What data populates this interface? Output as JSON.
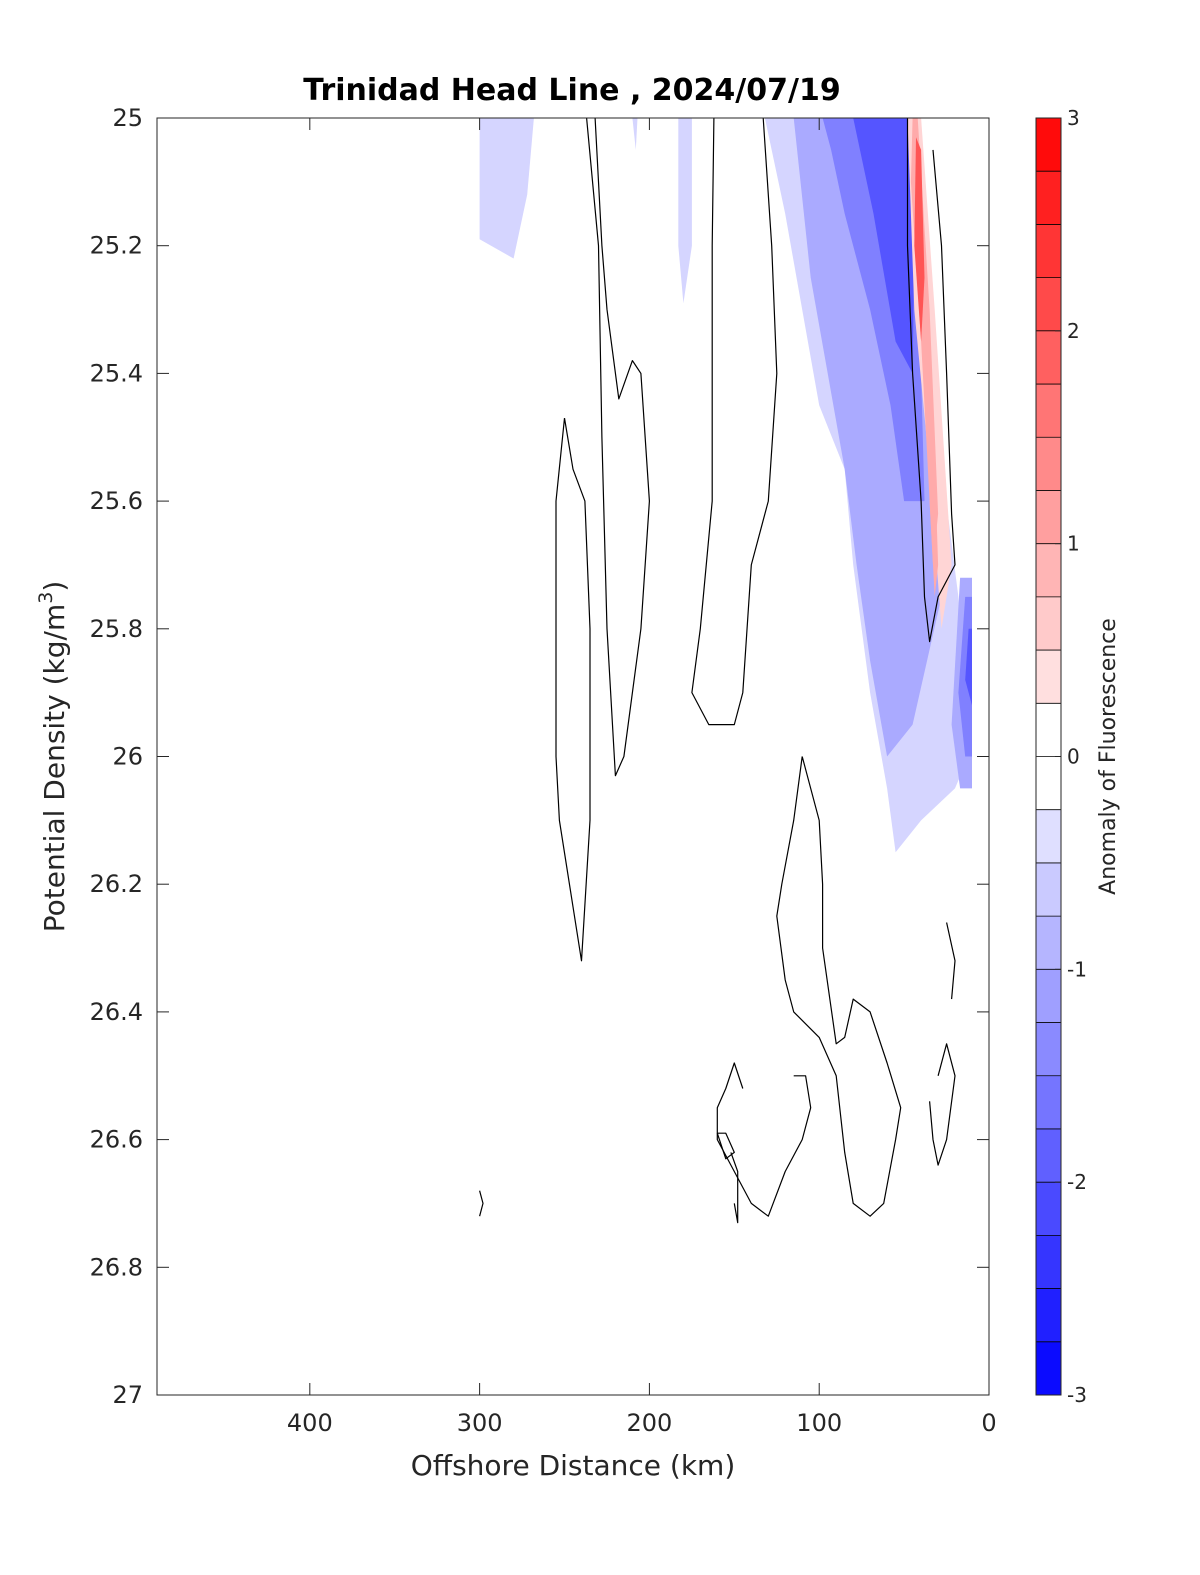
{
  "chart_data": {
    "type": "contour",
    "title": "Trinidad Head Line , 2024/07/19",
    "xlabel": "Offshore Distance (km)",
    "ylabel": "Potential Density (kg/m³)",
    "ylabel_parts": {
      "base": "Potential Density (kg/m",
      "sup": "3",
      "end": ")"
    },
    "colorbar_label": "Anomaly of Fluorescence",
    "x_reversed": true,
    "y_reversed": true,
    "xlim": [
      490,
      0
    ],
    "ylim": [
      25,
      27
    ],
    "x_ticks": [
      400,
      300,
      200,
      100,
      0
    ],
    "x_tick_labels": [
      "400",
      "300",
      "200",
      "100",
      "0"
    ],
    "y_ticks": [
      25,
      25.2,
      25.4,
      25.6,
      25.8,
      26,
      26.2,
      26.4,
      26.6,
      26.8,
      27
    ],
    "y_tick_labels": [
      "25",
      "25.2",
      "25.4",
      "25.6",
      "25.8",
      "26",
      "26.2",
      "26.4",
      "26.6",
      "26.8",
      "27"
    ],
    "colorbar_range": [
      -3,
      3
    ],
    "colorbar_ticks": [
      3,
      2,
      1,
      0,
      -1,
      -2,
      -3
    ],
    "colorbar_tick_labels": [
      "3",
      "2",
      "1",
      "0",
      "-1",
      "-2",
      "-3"
    ],
    "colorbar_step": 0.25,
    "colors": {
      "positive_max": "#ff0000",
      "negative_max": "#0000ff",
      "neutral": "#ffffff",
      "contour_line": "#000000"
    },
    "filled_regions": [
      {
        "value": -0.5,
        "points": [
          [
            300,
            25
          ],
          [
            268,
            25
          ],
          [
            272,
            25.12
          ],
          [
            280,
            25.22
          ],
          [
            300,
            25.19
          ]
        ]
      },
      {
        "value": -0.5,
        "points": [
          [
            210,
            25
          ],
          [
            207,
            25
          ],
          [
            208,
            25.05
          ]
        ]
      },
      {
        "value": -0.5,
        "points": [
          [
            183,
            25
          ],
          [
            175,
            25
          ],
          [
            175,
            25.2
          ],
          [
            180,
            25.29
          ],
          [
            183,
            25.2
          ]
        ]
      },
      {
        "value": -0.5,
        "points": [
          [
            132,
            25
          ],
          [
            45,
            25
          ],
          [
            30,
            25.5
          ],
          [
            18,
            25.75
          ],
          [
            12,
            26.0
          ],
          [
            20,
            26.05
          ],
          [
            40,
            26.1
          ],
          [
            55,
            26.15
          ],
          [
            60,
            26.05
          ],
          [
            70,
            25.9
          ],
          [
            80,
            25.7
          ],
          [
            85,
            25.55
          ],
          [
            100,
            25.45
          ],
          [
            110,
            25.3
          ],
          [
            120,
            25.15
          ]
        ]
      },
      {
        "value": -1.0,
        "points": [
          [
            115,
            25
          ],
          [
            45,
            25
          ],
          [
            32,
            25.5
          ],
          [
            28,
            25.75
          ],
          [
            45,
            25.95
          ],
          [
            60,
            26.0
          ],
          [
            70,
            25.85
          ],
          [
            78,
            25.7
          ],
          [
            85,
            25.55
          ],
          [
            95,
            25.4
          ],
          [
            105,
            25.25
          ]
        ]
      },
      {
        "value": -1.0,
        "points": [
          [
            17,
            25.72
          ],
          [
            10,
            25.72
          ],
          [
            10,
            26.05
          ],
          [
            17,
            26.05
          ],
          [
            22,
            25.95
          ]
        ]
      },
      {
        "value": -1.5,
        "points": [
          [
            98,
            25
          ],
          [
            48,
            25
          ],
          [
            40,
            25.4
          ],
          [
            38,
            25.6
          ],
          [
            50,
            25.6
          ],
          [
            58,
            25.45
          ],
          [
            70,
            25.3
          ],
          [
            85,
            25.15
          ],
          [
            93,
            25.05
          ]
        ]
      },
      {
        "value": -1.5,
        "points": [
          [
            14,
            25.75
          ],
          [
            10,
            25.75
          ],
          [
            10,
            26.0
          ],
          [
            14,
            26.0
          ],
          [
            18,
            25.9
          ]
        ]
      },
      {
        "value": -2.0,
        "points": [
          [
            80,
            25
          ],
          [
            48,
            25
          ],
          [
            44,
            25.2
          ],
          [
            45,
            25.4
          ],
          [
            55,
            25.35
          ],
          [
            68,
            25.15
          ]
        ]
      },
      {
        "value": -2.0,
        "points": [
          [
            12,
            25.8
          ],
          [
            10,
            25.8
          ],
          [
            10,
            25.92
          ],
          [
            14,
            25.88
          ]
        ]
      },
      {
        "value": 0.5,
        "points": [
          [
            48,
            25
          ],
          [
            40,
            25.0
          ],
          [
            32,
            25.3
          ],
          [
            22,
            25.7
          ],
          [
            28,
            25.8
          ],
          [
            35,
            25.55
          ],
          [
            44,
            25.3
          ]
        ]
      },
      {
        "value": 1.0,
        "points": [
          [
            45,
            25
          ],
          [
            42,
            25.0
          ],
          [
            35,
            25.3
          ],
          [
            30,
            25.62
          ],
          [
            33,
            25.7
          ],
          [
            40,
            25.35
          ],
          [
            46,
            25.1
          ]
        ]
      },
      {
        "value": 2.0,
        "points": [
          [
            43,
            25.03
          ],
          [
            40,
            25.05
          ],
          [
            38,
            25.25
          ],
          [
            40,
            25.35
          ],
          [
            44,
            25.2
          ]
        ]
      },
      {
        "value": 1.0,
        "points": [
          [
            36,
            25.4
          ],
          [
            33,
            25.45
          ],
          [
            30,
            25.7
          ],
          [
            32,
            25.75
          ],
          [
            35,
            25.6
          ]
        ]
      }
    ],
    "contour_lines": [
      [
        [
          237,
          25
        ],
        [
          230,
          25.2
        ],
        [
          228,
          25.5
        ],
        [
          225,
          25.8
        ],
        [
          220,
          26.03
        ],
        [
          215,
          26.0
        ],
        [
          205,
          25.8
        ],
        [
          200,
          25.6
        ],
        [
          205,
          25.4
        ],
        [
          210,
          25.38
        ],
        [
          218,
          25.44
        ],
        [
          225,
          25.3
        ],
        [
          228,
          25.2
        ],
        [
          232,
          25
        ]
      ],
      [
        [
          250,
          25.47
        ],
        [
          255,
          25.6
        ],
        [
          255,
          26.0
        ],
        [
          253,
          26.1
        ],
        [
          240,
          26.32
        ],
        [
          235,
          26.1
        ],
        [
          235,
          25.8
        ],
        [
          238,
          25.6
        ],
        [
          245,
          25.55
        ],
        [
          250,
          25.47
        ]
      ],
      [
        [
          162,
          25
        ],
        [
          163,
          25.2
        ],
        [
          163,
          25.6
        ],
        [
          170,
          25.8
        ],
        [
          175,
          25.9
        ],
        [
          165,
          25.95
        ],
        [
          150,
          25.95
        ],
        [
          145,
          25.9
        ],
        [
          140,
          25.7
        ],
        [
          130,
          25.6
        ],
        [
          125,
          25.4
        ],
        [
          128,
          25.2
        ],
        [
          133,
          25
        ]
      ],
      [
        [
          48,
          25
        ],
        [
          48,
          25.2
        ],
        [
          45,
          25.4
        ],
        [
          40,
          25.6
        ],
        [
          38,
          25.75
        ],
        [
          35,
          25.82
        ],
        [
          30,
          25.75
        ],
        [
          20,
          25.7
        ],
        [
          22,
          25.62
        ],
        [
          25,
          25.4
        ],
        [
          28,
          25.2
        ],
        [
          33,
          25.05
        ]
      ],
      [
        [
          110,
          26.0
        ],
        [
          100,
          26.1
        ],
        [
          98,
          26.2
        ],
        [
          98,
          26.3
        ],
        [
          90,
          26.45
        ],
        [
          85,
          26.44
        ],
        [
          80,
          26.38
        ],
        [
          70,
          26.4
        ],
        [
          60,
          26.48
        ],
        [
          52,
          26.55
        ],
        [
          55,
          26.6
        ],
        [
          62,
          26.7
        ],
        [
          70,
          26.72
        ],
        [
          80,
          26.7
        ],
        [
          85,
          26.62
        ],
        [
          90,
          26.5
        ],
        [
          100,
          26.44
        ],
        [
          115,
          26.4
        ],
        [
          120,
          26.35
        ],
        [
          125,
          26.25
        ],
        [
          122,
          26.2
        ],
        [
          115,
          26.1
        ],
        [
          110,
          26.0
        ]
      ],
      [
        [
          145,
          26.52
        ],
        [
          150,
          26.48
        ],
        [
          155,
          26.52
        ],
        [
          160,
          26.55
        ],
        [
          160,
          26.6
        ],
        [
          150,
          26.65
        ],
        [
          140,
          26.7
        ],
        [
          130,
          26.72
        ],
        [
          120,
          26.65
        ],
        [
          110,
          26.6
        ],
        [
          105,
          26.55
        ],
        [
          108,
          26.5
        ],
        [
          115,
          26.5
        ]
      ],
      [
        [
          160,
          26.59
        ],
        [
          155,
          26.63
        ],
        [
          150,
          26.62
        ],
        [
          155,
          26.59
        ],
        [
          160,
          26.59
        ]
      ],
      [
        [
          152,
          26.62
        ],
        [
          148,
          26.65
        ],
        [
          148,
          26.73
        ],
        [
          150,
          26.7
        ]
      ],
      [
        [
          300,
          26.68
        ],
        [
          298,
          26.7
        ],
        [
          300,
          26.72
        ]
      ],
      [
        [
          35,
          26.54
        ],
        [
          33,
          26.6
        ],
        [
          30,
          26.64
        ],
        [
          25,
          26.6
        ],
        [
          20,
          26.5
        ],
        [
          25,
          26.45
        ],
        [
          30,
          26.5
        ]
      ],
      [
        [
          25,
          26.26
        ],
        [
          20,
          26.32
        ],
        [
          22,
          26.38
        ]
      ]
    ]
  }
}
